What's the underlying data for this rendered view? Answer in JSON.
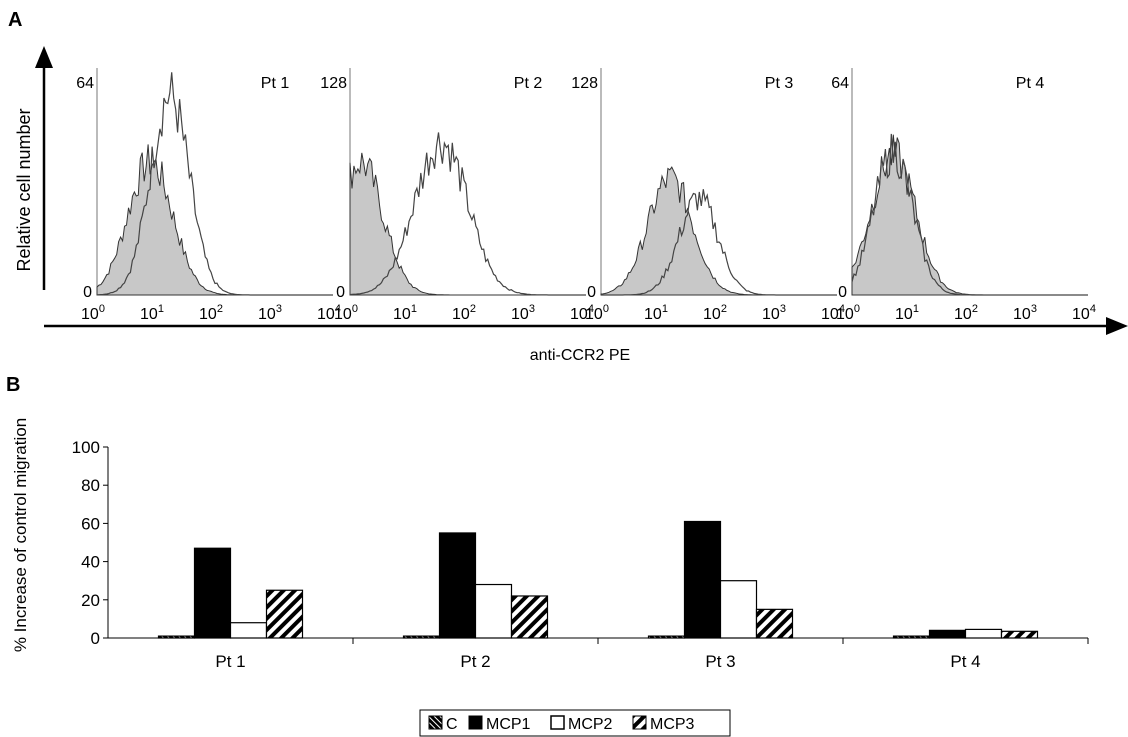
{
  "panel_a": {
    "letter": "A",
    "ylabel": "Relative cell number",
    "xlabel": "anti-CCR2 PE",
    "x_ticks": [
      {
        "base": "10",
        "exp": "0"
      },
      {
        "base": "10",
        "exp": "1"
      },
      {
        "base": "10",
        "exp": "2"
      },
      {
        "base": "10",
        "exp": "3"
      },
      {
        "base": "10",
        "exp": "4"
      }
    ],
    "plots": [
      {
        "label": "Pt 1",
        "ymax_label": "64",
        "ymin_label": "0"
      },
      {
        "label": "Pt 2",
        "ymax_label": "128",
        "ymin_label": "0"
      },
      {
        "label": "Pt 3",
        "ymax_label": "128",
        "ymin_label": "0"
      },
      {
        "label": "Pt 4",
        "ymax_label": "64",
        "ymin_label": "0"
      }
    ]
  },
  "panel_b": {
    "letter": "B",
    "legend_items": [
      "C",
      "MCP1",
      "MCP2",
      "MCP3"
    ]
  },
  "colors": {
    "filled_histogram": "#c8c8c8",
    "bar_black": "#000000",
    "bar_white": "#ffffff"
  },
  "chart_data": [
    {
      "type": "area",
      "x_scale": "log",
      "xlim": [
        1,
        10000
      ],
      "series_kinds": [
        "control (filled grey)",
        "anti-CCR2 PE (open line)"
      ],
      "histograms": [
        {
          "label": "Pt 1",
          "ylim": [
            0,
            64
          ],
          "control": {
            "peak_x": 8,
            "peak_y": 40
          },
          "stained": {
            "peak_x": 17,
            "peak_y": 60
          }
        },
        {
          "label": "Pt 2",
          "ylim": [
            0,
            128
          ],
          "control": {
            "peak_x": 1.5,
            "peak_y": 80
          },
          "stained": {
            "peak_x": 35,
            "peak_y": 92
          }
        },
        {
          "label": "Pt 3",
          "ylim": [
            0,
            128
          ],
          "control": {
            "peak_x": 15,
            "peak_y": 70
          },
          "stained": {
            "peak_x": 45,
            "peak_y": 58
          }
        },
        {
          "label": "Pt 4",
          "ylim": [
            0,
            64
          ],
          "control": {
            "peak_x": 5,
            "peak_y": 42
          },
          "stained": {
            "peak_x": 5,
            "peak_y": 43
          }
        }
      ]
    },
    {
      "type": "bar",
      "ylabel": "% Increase of control migration",
      "ylim": [
        0,
        100
      ],
      "y_ticks": [
        0,
        20,
        40,
        60,
        80,
        100
      ],
      "categories": [
        "Pt 1",
        "Pt 2",
        "Pt 3",
        "Pt 4"
      ],
      "series": [
        {
          "name": "C",
          "values": [
            1,
            1,
            1,
            1
          ],
          "fill": "black-diagonal"
        },
        {
          "name": "MCP1",
          "values": [
            47,
            55,
            61,
            4
          ],
          "fill": "black"
        },
        {
          "name": "MCP2",
          "values": [
            8,
            28,
            30,
            4.5
          ],
          "fill": "white"
        },
        {
          "name": "MCP3",
          "values": [
            25,
            22,
            15,
            3.5
          ],
          "fill": "hatch"
        }
      ],
      "legend_position": "bottom"
    }
  ]
}
